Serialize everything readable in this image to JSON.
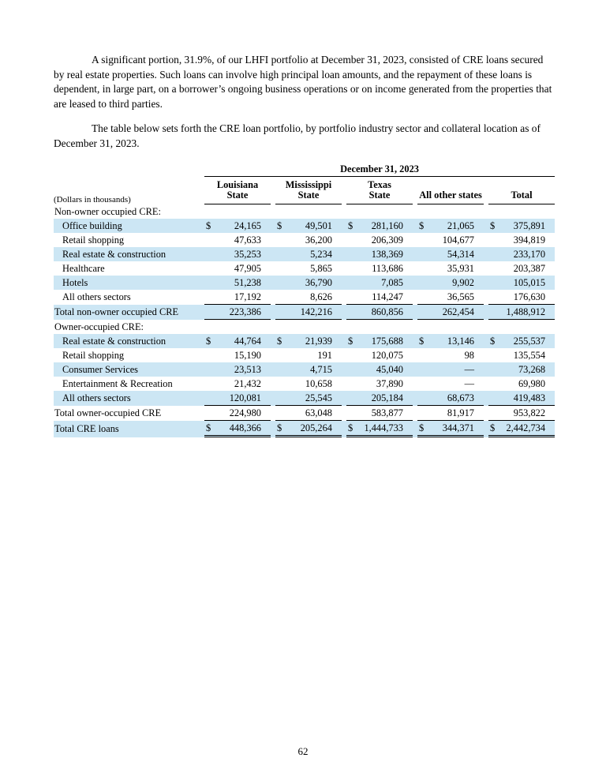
{
  "page": {
    "paragraph1": "A significant portion, 31.9%, of our LHFI portfolio at December 31, 2023, consisted of CRE loans secured by real estate properties. Such loans can involve high principal loan amounts, and the repayment of these loans is dependent, in large part, on a borrower’s ongoing business operations or on income generated from the properties that are leased to third parties.",
    "paragraph2": "The table below sets forth the CRE loan portfolio, by portfolio industry sector and collateral location as of December 31, 2023.",
    "page_number": "62"
  },
  "table": {
    "date_header": "December 31, 2023",
    "units_label": "(Dollars in thousands)",
    "dollar_sign": "$",
    "shade_color": "#cce6f4",
    "columns": [
      "Louisiana\nState",
      "Mississippi\nState",
      "Texas\nState",
      "All other states",
      "Total"
    ],
    "rows": [
      {
        "label": "Non-owner occupied CRE:",
        "section": true,
        "shaded": false
      },
      {
        "label": "Office building",
        "indent": true,
        "dollar": true,
        "shaded": true,
        "values": [
          "24,165",
          "49,501",
          "281,160",
          "21,065",
          "375,891"
        ]
      },
      {
        "label": "Retail shopping",
        "indent": true,
        "shaded": false,
        "values": [
          "47,633",
          "36,200",
          "206,309",
          "104,677",
          "394,819"
        ]
      },
      {
        "label": "Real estate & construction",
        "indent": true,
        "shaded": true,
        "values": [
          "35,253",
          "5,234",
          "138,369",
          "54,314",
          "233,170"
        ]
      },
      {
        "label": "Healthcare",
        "indent": true,
        "shaded": false,
        "values": [
          "47,905",
          "5,865",
          "113,686",
          "35,931",
          "203,387"
        ]
      },
      {
        "label": "Hotels",
        "indent": true,
        "shaded": true,
        "values": [
          "51,238",
          "36,790",
          "7,085",
          "9,902",
          "105,015"
        ]
      },
      {
        "label": "All others sectors",
        "indent": true,
        "shaded": false,
        "border": "single",
        "values": [
          "17,192",
          "8,626",
          "114,247",
          "36,565",
          "176,630"
        ]
      },
      {
        "label": "Total non-owner occupied CRE",
        "shaded": true,
        "border": "single",
        "values": [
          "223,386",
          "142,216",
          "860,856",
          "262,454",
          "1,488,912"
        ]
      },
      {
        "label": "Owner-occupied CRE:",
        "section": true,
        "shaded": false
      },
      {
        "label": "Real estate & construction",
        "indent": true,
        "dollar": true,
        "shaded": true,
        "values": [
          "44,764",
          "21,939",
          "175,688",
          "13,146",
          "255,537"
        ]
      },
      {
        "label": "Retail shopping",
        "indent": true,
        "shaded": false,
        "values": [
          "15,190",
          "191",
          "120,075",
          "98",
          "135,554"
        ]
      },
      {
        "label": "Consumer Services",
        "indent": true,
        "shaded": true,
        "values": [
          "23,513",
          "4,715",
          "45,040",
          "—",
          "73,268"
        ]
      },
      {
        "label": "Entertainment & Recreation",
        "indent": true,
        "shaded": false,
        "values": [
          "21,432",
          "10,658",
          "37,890",
          "—",
          "69,980"
        ]
      },
      {
        "label": "All others sectors",
        "indent": true,
        "shaded": true,
        "border": "single",
        "values": [
          "120,081",
          "25,545",
          "205,184",
          "68,673",
          "419,483"
        ]
      },
      {
        "label": "Total owner-occupied CRE",
        "shaded": false,
        "border": "single",
        "values": [
          "224,980",
          "63,048",
          "583,877",
          "81,917",
          "953,822"
        ]
      },
      {
        "label": "Total CRE loans",
        "dollar": true,
        "shaded": true,
        "border": "double",
        "values": [
          "448,366",
          "205,264",
          "1,444,733",
          "344,371",
          "2,442,734"
        ]
      }
    ]
  }
}
